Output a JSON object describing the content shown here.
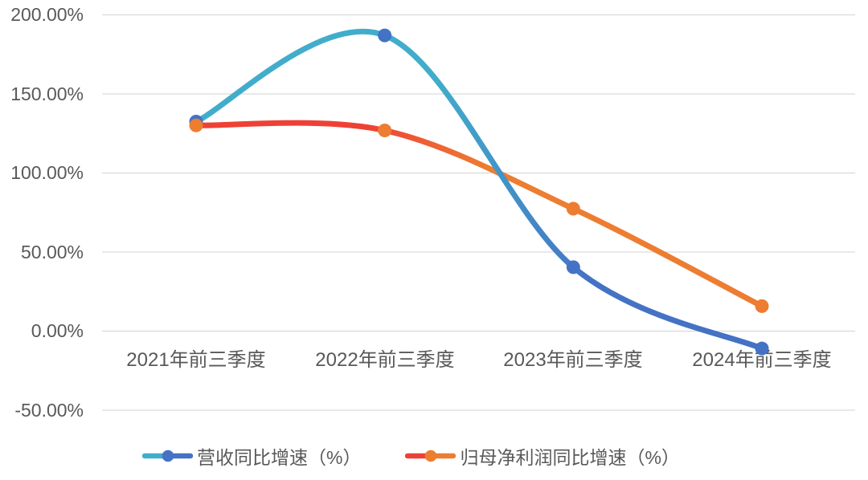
{
  "chart_data": {
    "type": "line",
    "line_style": "smooth",
    "marker_style": "circle",
    "categories": [
      "2021年前三季度",
      "2022年前三季度",
      "2023年前三季度",
      "2024年前三季度"
    ],
    "series": [
      {
        "name": "营收同比增速（%）",
        "values": [
          132.5,
          187.0,
          40.4,
          -11.0
        ],
        "line_color_start": "#41ADCB",
        "line_color_end": "#4472C4",
        "marker_color": "#4472C4"
      },
      {
        "name": "归母净利润同比增速（%）",
        "values": [
          130.1,
          126.9,
          77.4,
          15.8
        ],
        "line_color_start": "#EE4136",
        "line_color_end": "#ED7D31",
        "marker_color": "#ED7D31"
      }
    ],
    "yticks": [
      "200.00%",
      "150.00%",
      "100.00%",
      "50.00%",
      "0.00%",
      "-50.00%"
    ],
    "ytick_values": [
      200,
      150,
      100,
      50,
      0,
      -50
    ],
    "ylim": [
      -50,
      200
    ],
    "grid": true,
    "legend_position": "bottom",
    "colors": {
      "background": "#FFFFFF",
      "gridline": "#D9D9D9",
      "text": "#595959"
    }
  }
}
